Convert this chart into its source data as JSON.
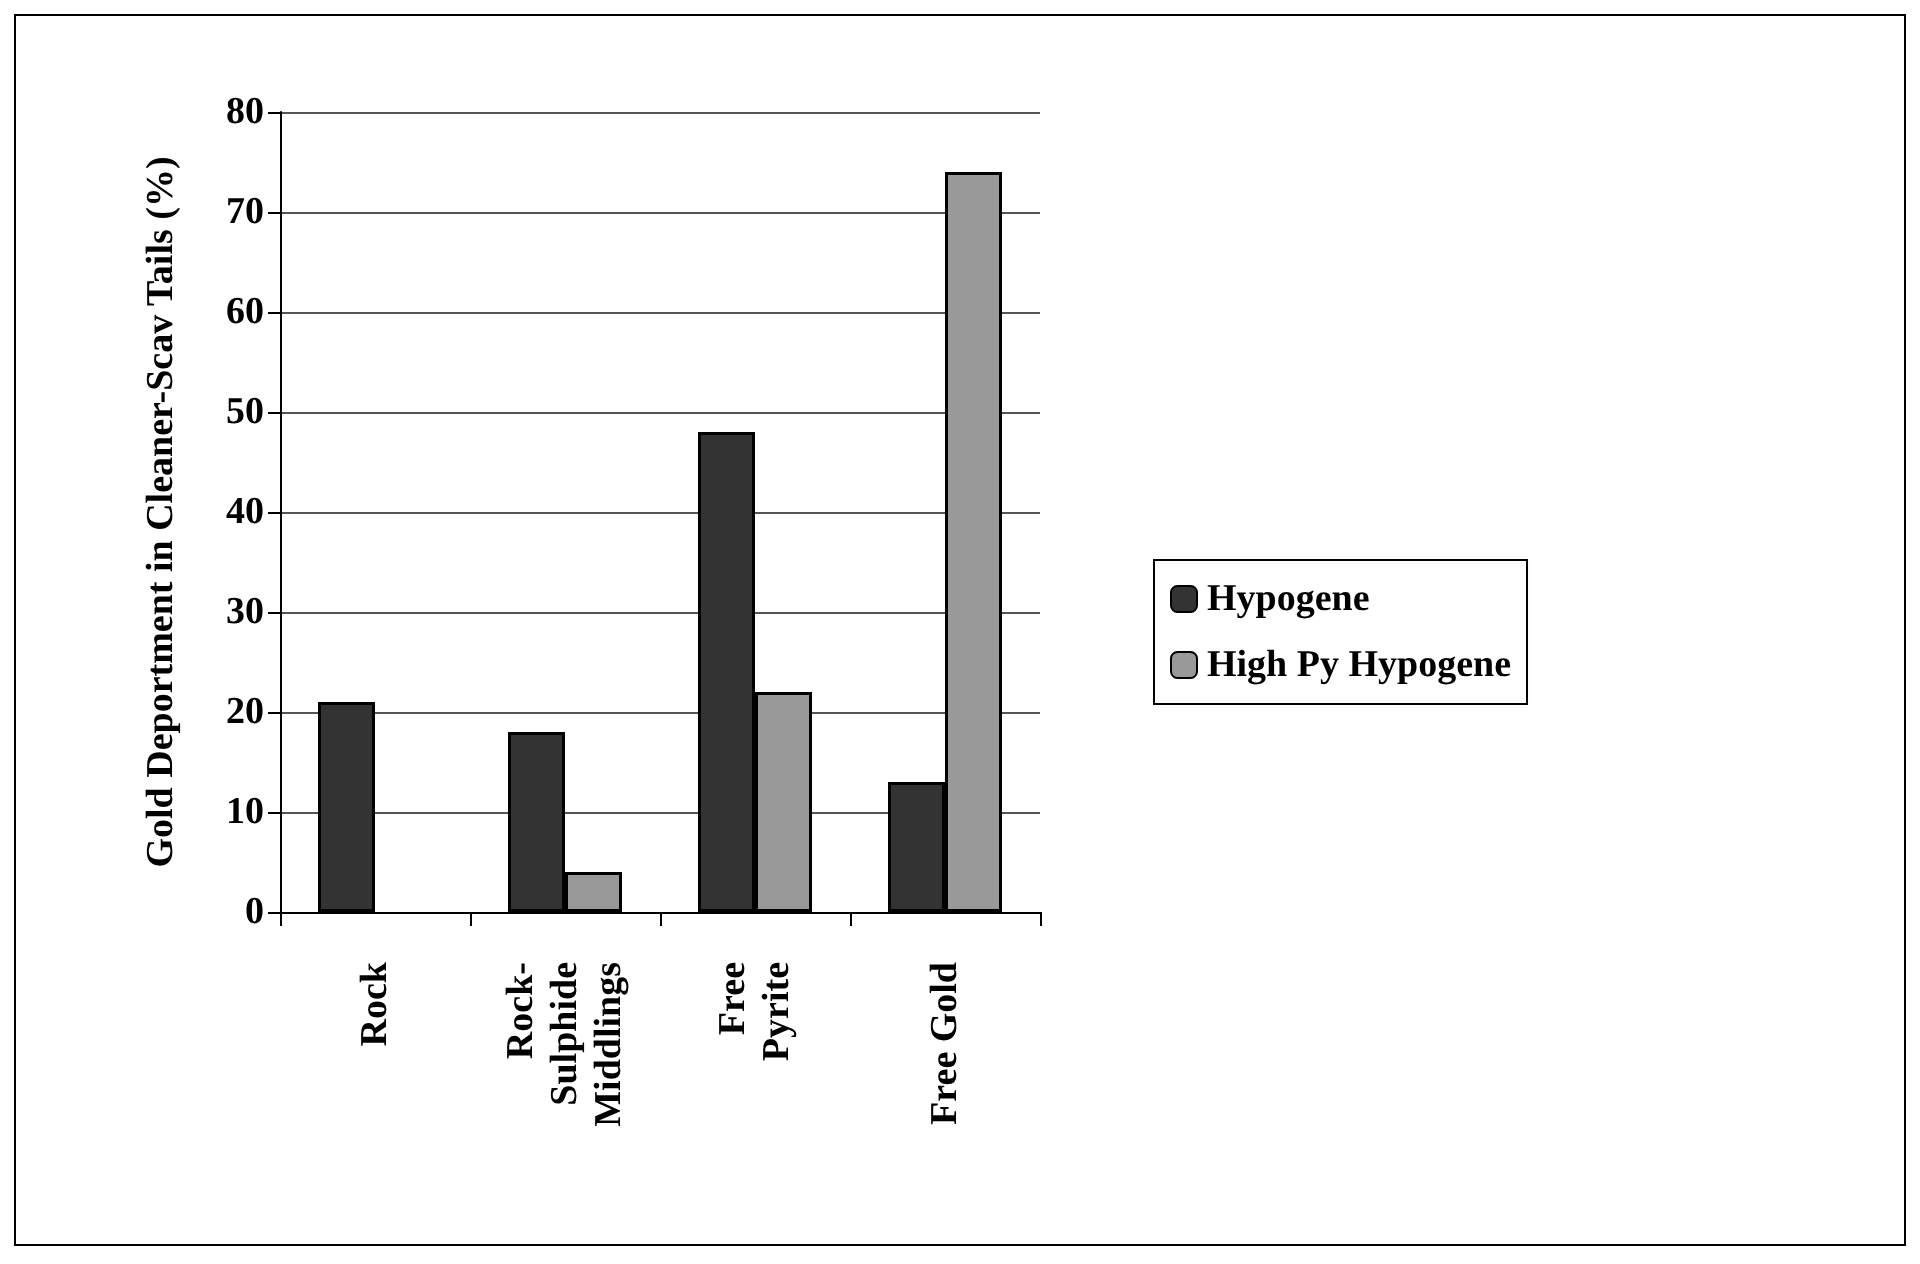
{
  "chart_data": {
    "type": "bar",
    "ylabel": "Gold Deportment in Cleaner-Scav Tails (%)",
    "categories": [
      "Rock",
      "Rock-\nSulphide\nMiddlings",
      "Free\nPyrite",
      "Free Gold"
    ],
    "series": [
      {
        "name": "Hypogene",
        "color": "#333333",
        "values": [
          21,
          18,
          48,
          13
        ]
      },
      {
        "name": "High Py Hypogene",
        "color": "#999999",
        "values": [
          0,
          4,
          22,
          74
        ]
      }
    ],
    "ylim": [
      0,
      80
    ],
    "yticks": [
      0,
      10,
      20,
      30,
      40,
      50,
      60,
      70,
      80
    ],
    "grid": "y",
    "legend": "right"
  }
}
